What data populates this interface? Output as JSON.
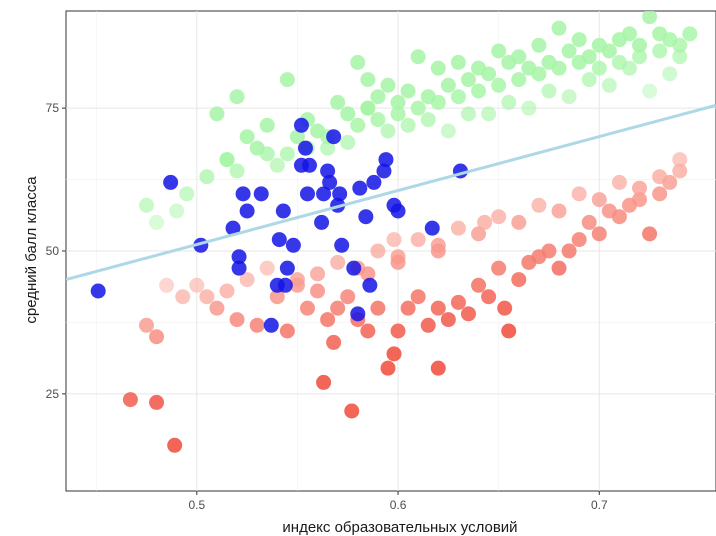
{
  "chart_data": {
    "type": "scatter",
    "title": "",
    "xlabel": "индекс образовательных условий",
    "ylabel": "средний балл класса",
    "xlim": [
      0.435,
      0.758
    ],
    "ylim": [
      8,
      92
    ],
    "x_ticks": [
      0.5,
      0.6,
      0.7
    ],
    "x_tick_labels": [
      "0.5",
      "0.6",
      "0.7"
    ],
    "y_ticks": [
      25,
      50,
      75
    ],
    "y_tick_labels": [
      "25",
      "50",
      "75"
    ],
    "grid": true,
    "legend": "none",
    "trend_line": {
      "x": [
        0.435,
        0.758
      ],
      "y": [
        45,
        75.5
      ],
      "color": "#add8e6"
    },
    "colors": {
      "above": "#a6f5a6",
      "below_light": "#ffd7cf",
      "below_dark": "#f04a3a",
      "highlight": "#1414e6"
    },
    "series": [
      {
        "role": "above",
        "x": [
          0.475,
          0.48,
          0.49,
          0.495,
          0.505,
          0.51,
          0.515,
          0.52,
          0.52,
          0.525,
          0.53,
          0.535,
          0.54,
          0.545,
          0.545,
          0.55,
          0.555,
          0.56,
          0.565,
          0.57,
          0.575,
          0.58,
          0.58,
          0.585,
          0.585,
          0.59,
          0.59,
          0.595,
          0.6,
          0.6,
          0.605,
          0.61,
          0.61,
          0.615,
          0.62,
          0.62,
          0.625,
          0.63,
          0.63,
          0.635,
          0.64,
          0.64,
          0.645,
          0.65,
          0.65,
          0.655,
          0.66,
          0.66,
          0.665,
          0.67,
          0.67,
          0.675,
          0.68,
          0.68,
          0.685,
          0.69,
          0.69,
          0.695,
          0.7,
          0.7,
          0.705,
          0.71,
          0.71,
          0.715,
          0.72,
          0.72,
          0.725,
          0.73,
          0.73,
          0.735,
          0.74,
          0.74,
          0.745,
          0.565,
          0.585,
          0.615,
          0.635,
          0.655,
          0.675,
          0.695,
          0.715,
          0.735,
          0.605,
          0.625,
          0.645,
          0.665,
          0.685,
          0.705,
          0.725,
          0.595,
          0.575,
          0.555,
          0.535,
          0.515
        ],
        "y": [
          58,
          55,
          57,
          60,
          63,
          74,
          66,
          77,
          64,
          70,
          68,
          72,
          65,
          80,
          67,
          70,
          73,
          71,
          68,
          76,
          74,
          83,
          72,
          80,
          75,
          77,
          73,
          79,
          76,
          74,
          78,
          84,
          75,
          77,
          82,
          76,
          79,
          83,
          77,
          80,
          78,
          82,
          81,
          85,
          79,
          83,
          80,
          84,
          82,
          86,
          81,
          83,
          89,
          82,
          85,
          87,
          83,
          84,
          86,
          82,
          85,
          87,
          83,
          88,
          86,
          84,
          91,
          88,
          85,
          87,
          86,
          84,
          88,
          70,
          75,
          73,
          74,
          76,
          78,
          80,
          82,
          81,
          72,
          71,
          74,
          75,
          77,
          79,
          78,
          71,
          69,
          68,
          67,
          66
        ]
      },
      {
        "role": "below",
        "x": [
          0.467,
          0.475,
          0.48,
          0.48,
          0.485,
          0.489,
          0.493,
          0.5,
          0.505,
          0.51,
          0.515,
          0.52,
          0.525,
          0.53,
          0.535,
          0.54,
          0.545,
          0.55,
          0.555,
          0.56,
          0.563,
          0.565,
          0.568,
          0.57,
          0.575,
          0.577,
          0.58,
          0.585,
          0.59,
          0.595,
          0.598,
          0.6,
          0.605,
          0.61,
          0.615,
          0.62,
          0.62,
          0.625,
          0.63,
          0.635,
          0.64,
          0.645,
          0.65,
          0.653,
          0.655,
          0.66,
          0.665,
          0.67,
          0.675,
          0.68,
          0.685,
          0.69,
          0.695,
          0.7,
          0.705,
          0.71,
          0.715,
          0.72,
          0.725,
          0.73,
          0.735,
          0.74,
          0.56,
          0.58,
          0.6,
          0.62,
          0.64,
          0.66,
          0.68,
          0.7,
          0.72,
          0.74,
          0.57,
          0.59,
          0.61,
          0.63,
          0.65,
          0.67,
          0.69,
          0.71,
          0.73,
          0.55,
          0.6,
          0.62,
          0.585,
          0.598,
          0.643
        ],
        "y": [
          24,
          37,
          35,
          23.5,
          44,
          16,
          42,
          44,
          42,
          40,
          43,
          38,
          45,
          37,
          47,
          42,
          36,
          45,
          40,
          43,
          27,
          38,
          34,
          40,
          42,
          22,
          38,
          36,
          40,
          29.5,
          32,
          36,
          40,
          42,
          37,
          29.5,
          40,
          38,
          41,
          39,
          44,
          42,
          47,
          40,
          36,
          45,
          48,
          49,
          50,
          47,
          50,
          52,
          55,
          53,
          57,
          56,
          58,
          59,
          53,
          60,
          62,
          64,
          46,
          47,
          49,
          51,
          53,
          55,
          57,
          59,
          61,
          66,
          48,
          50,
          52,
          54,
          56,
          58,
          60,
          62,
          63,
          44,
          48,
          50,
          46,
          52,
          55
        ]
      },
      {
        "role": "highlight",
        "x": [
          0.451,
          0.487,
          0.502,
          0.518,
          0.521,
          0.521,
          0.523,
          0.525,
          0.532,
          0.537,
          0.54,
          0.541,
          0.543,
          0.544,
          0.545,
          0.548,
          0.552,
          0.552,
          0.554,
          0.555,
          0.556,
          0.562,
          0.563,
          0.565,
          0.566,
          0.568,
          0.57,
          0.571,
          0.572,
          0.578,
          0.58,
          0.581,
          0.584,
          0.586,
          0.588,
          0.593,
          0.594,
          0.598,
          0.6,
          0.617,
          0.631
        ],
        "y": [
          43,
          62,
          51,
          54,
          49,
          47,
          60,
          57,
          60,
          37,
          44,
          52,
          57,
          44,
          47,
          51,
          72,
          65,
          68,
          60,
          65,
          55,
          60,
          64,
          62,
          70,
          58,
          60,
          51,
          47,
          39,
          61,
          56,
          44,
          62,
          64,
          66,
          58,
          57,
          54,
          64
        ]
      }
    ]
  }
}
